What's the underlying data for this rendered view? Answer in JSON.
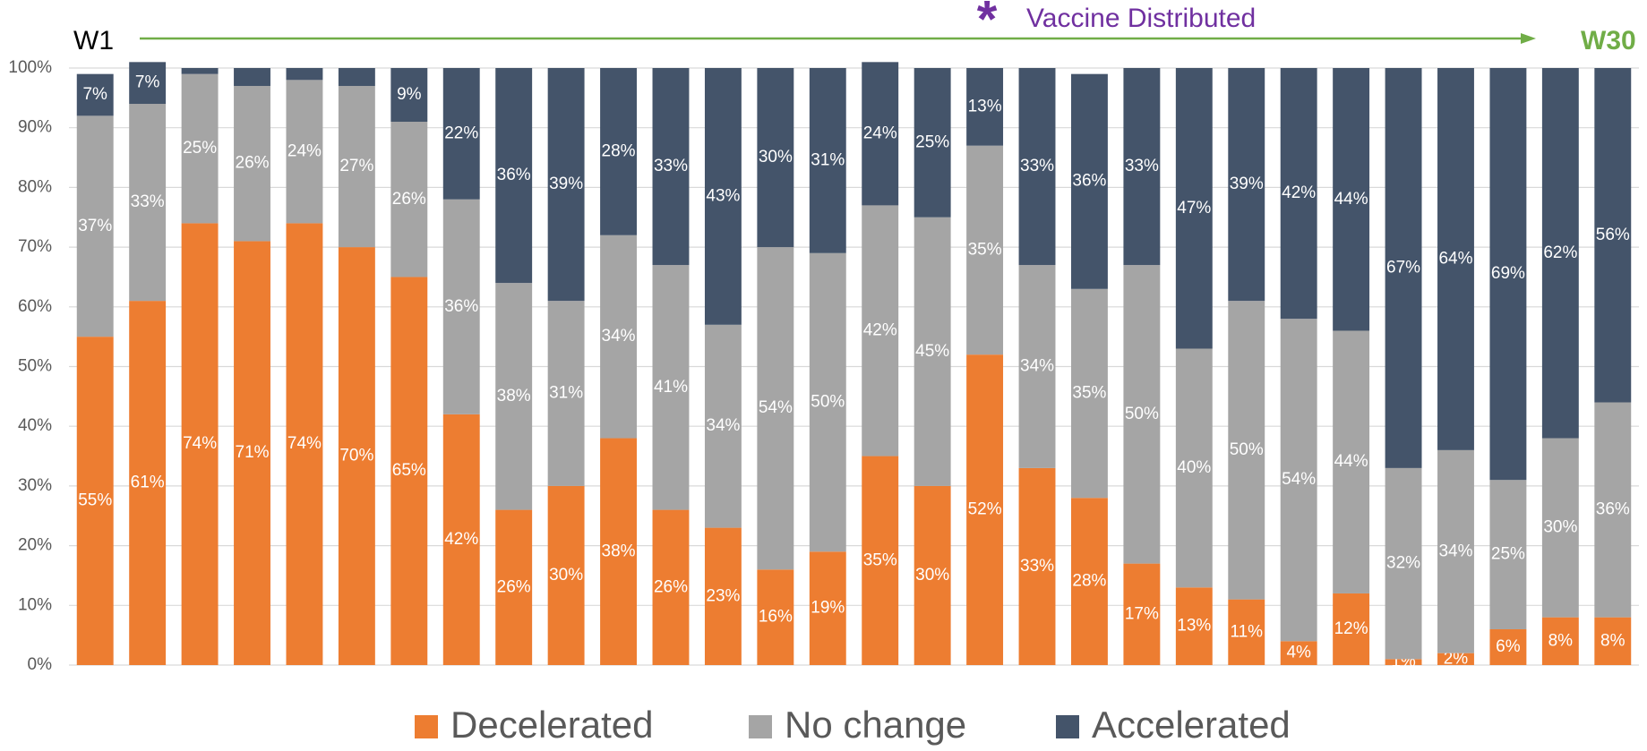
{
  "chart_data": {
    "type": "stacked_bar",
    "event_marker": "*",
    "event_label": "Vaccine Distributed",
    "start_label": "W1",
    "end_label": "W30",
    "categories": [
      null,
      null,
      null,
      null,
      null,
      null,
      null,
      null,
      null,
      null,
      null,
      null,
      null,
      null,
      null,
      null,
      null,
      null,
      null,
      null,
      null,
      null,
      null,
      null,
      null,
      null,
      null,
      null,
      null,
      null
    ],
    "series": [
      {
        "name": "Decelerated",
        "color": "#ed7d31",
        "values": [
          55,
          61,
          74,
          71,
          74,
          70,
          65,
          42,
          26,
          30,
          38,
          26,
          23,
          16,
          19,
          35,
          30,
          52,
          33,
          28,
          17,
          13,
          11,
          4,
          12,
          1,
          2,
          6,
          8,
          8
        ],
        "value_labels": [
          "55%",
          "61%",
          "74%",
          "71%",
          "74%",
          "70%",
          "65%",
          "42%",
          "26%",
          "30%",
          "38%",
          "26%",
          "23%",
          "16%",
          "19%",
          "35%",
          "30%",
          "52%",
          "33%",
          "28%",
          "17%",
          "13%",
          "11%",
          "4%",
          "12%",
          "1%",
          "2%",
          "6%",
          "8%",
          "8%"
        ]
      },
      {
        "name": "No change",
        "color": "#a5a5a5",
        "values": [
          37,
          33,
          25,
          26,
          24,
          27,
          26,
          36,
          38,
          31,
          34,
          41,
          34,
          54,
          50,
          42,
          45,
          35,
          34,
          35,
          50,
          40,
          50,
          54,
          44,
          32,
          34,
          25,
          30,
          36
        ],
        "value_labels": [
          "37%",
          "33%",
          "25%",
          "26%",
          "24%",
          "27%",
          "26%",
          "36%",
          "38%",
          "31%",
          "34%",
          "41%",
          "34%",
          "54%",
          "50%",
          "42%",
          "45%",
          "35%",
          "34%",
          "35%",
          "50%",
          "40%",
          "50%",
          "54%",
          "44%",
          "32%",
          "34%",
          "25%",
          "30%",
          "36%"
        ]
      },
      {
        "name": "Accelerated",
        "color": "#44546a",
        "values": [
          7,
          7,
          1,
          3,
          2,
          3,
          9,
          22,
          36,
          39,
          28,
          33,
          43,
          30,
          31,
          24,
          25,
          13,
          33,
          36,
          33,
          47,
          39,
          42,
          44,
          67,
          64,
          69,
          62,
          56
        ],
        "value_labels": [
          "7%",
          "7%",
          null,
          null,
          null,
          null,
          "9%",
          "22%",
          "36%",
          "39%",
          "28%",
          "33%",
          "43%",
          "30%",
          "31%",
          "24%",
          "25%",
          "13%",
          "33%",
          "36%",
          "33%",
          "47%",
          "39%",
          "42%",
          "44%",
          "67%",
          "64%",
          "69%",
          "62%",
          "56%"
        ]
      }
    ],
    "ylim": [
      0,
      100
    ],
    "yticks": [
      {
        "value": 0,
        "label": "0%"
      },
      {
        "value": 10,
        "label": "10%"
      },
      {
        "value": 20,
        "label": "20%"
      },
      {
        "value": 30,
        "label": "30%"
      },
      {
        "value": 40,
        "label": "40%"
      },
      {
        "value": 50,
        "label": "50%"
      },
      {
        "value": 60,
        "label": "60%"
      },
      {
        "value": 70,
        "label": "70%"
      },
      {
        "value": 80,
        "label": "80%"
      },
      {
        "value": 90,
        "label": "90%"
      },
      {
        "value": 100,
        "label": "100%"
      }
    ],
    "grid": true,
    "legend": "bottom",
    "arrow_color": "#70ad47",
    "event_color": "#7030a0"
  }
}
